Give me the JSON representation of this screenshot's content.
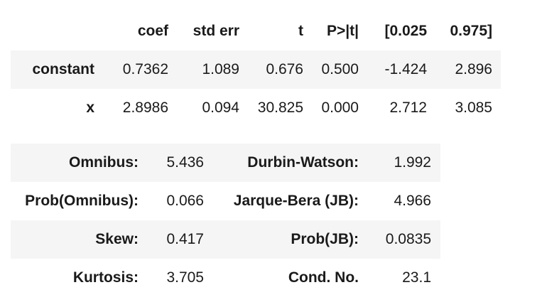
{
  "coef_table": {
    "headers": [
      "",
      "coef",
      "std err",
      "t",
      "P>|t|",
      "[0.025",
      "0.975]"
    ],
    "rows": [
      {
        "label": "constant",
        "coef": "0.7362",
        "std_err": "1.089",
        "t": "0.676",
        "p": "0.500",
        "ci_low": "-1.424",
        "ci_high": "2.896"
      },
      {
        "label": "x",
        "coef": "2.8986",
        "std_err": "0.094",
        "t": "30.825",
        "p": "0.000",
        "ci_low": "2.712",
        "ci_high": "3.085"
      }
    ]
  },
  "diag_table": {
    "rows": [
      {
        "label1": "Omnibus:",
        "value1": "5.436",
        "label2": "Durbin-Watson:",
        "value2": "1.992"
      },
      {
        "label1": "Prob(Omnibus):",
        "value1": "0.066",
        "label2": "Jarque-Bera (JB):",
        "value2": "4.966"
      },
      {
        "label1": "Skew:",
        "value1": "0.417",
        "label2": "Prob(JB):",
        "value2": "0.0835"
      },
      {
        "label1": "Kurtosis:",
        "value1": "3.705",
        "label2": "Cond. No.",
        "value2": "23.1"
      }
    ]
  },
  "colors": {
    "stripe": "#f5f5f5",
    "text": "#1a1a1a"
  }
}
